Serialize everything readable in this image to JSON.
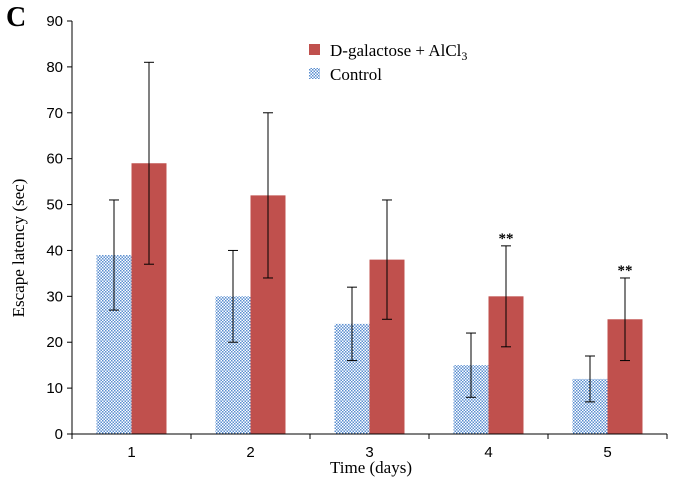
{
  "chart_data": {
    "type": "bar",
    "panel_label": "C",
    "xlabel": "Time (days)",
    "ylabel": "Escape latency (sec)",
    "ylim": [
      0,
      90
    ],
    "yticks": [
      0,
      10,
      20,
      30,
      40,
      50,
      60,
      70,
      80,
      90
    ],
    "categories": [
      "1",
      "2",
      "3",
      "4",
      "5"
    ],
    "legend_position": "top-center",
    "series": [
      {
        "name": "Control",
        "color": "#9dc3e6",
        "pattern": "checkered",
        "values": [
          39,
          30,
          24,
          15,
          12
        ],
        "error_low": [
          27,
          20,
          16,
          8,
          7
        ],
        "error_high": [
          51,
          40,
          32,
          22,
          17
        ]
      },
      {
        "name": "D-galactose + AlCl3",
        "legend_text": "D-galactose + AlCl",
        "legend_subscript": "3",
        "color": "#c0504d",
        "values": [
          59,
          52,
          38,
          30,
          25
        ],
        "error_low": [
          37,
          34,
          25,
          19,
          16
        ],
        "error_high": [
          81,
          70,
          51,
          41,
          34
        ]
      }
    ],
    "annotations": [
      {
        "category": "4",
        "series": "D-galactose + AlCl3",
        "text": "**"
      },
      {
        "category": "5",
        "series": "D-galactose + AlCl3",
        "text": "**"
      }
    ]
  }
}
